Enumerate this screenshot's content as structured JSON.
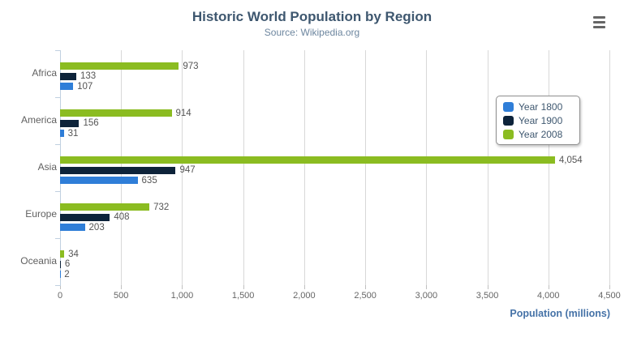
{
  "icons": {
    "context_menu": "hamburger"
  },
  "chart_data": {
    "type": "bar",
    "orientation": "horizontal",
    "title": "Historic World Population by Region",
    "subtitle": "Source: Wikipedia.org",
    "categories": [
      "Africa",
      "America",
      "Asia",
      "Europe",
      "Oceania"
    ],
    "series": [
      {
        "name": "Year 1800",
        "color": "#2f7ed8",
        "values": [
          107,
          31,
          635,
          203,
          2
        ]
      },
      {
        "name": "Year 1900",
        "color": "#0d233a",
        "values": [
          133,
          156,
          947,
          408,
          6
        ]
      },
      {
        "name": "Year 2008",
        "color": "#8bbc21",
        "values": [
          973,
          914,
          4054,
          732,
          34
        ]
      }
    ],
    "bar_display_order_top_to_bottom": [
      "Year 2008",
      "Year 1900",
      "Year 1800"
    ],
    "data_labels": true,
    "data_label_examples": [
      "973",
      "133",
      "107",
      "914",
      "156",
      "31",
      "4,054",
      "947",
      "635",
      "732",
      "408",
      "203",
      "34",
      "6",
      "2"
    ],
    "xlabel": "Population (millions)",
    "x_ticks": [
      0,
      500,
      1000,
      1500,
      2000,
      2500,
      3000,
      3500,
      4000,
      4500
    ],
    "x_tick_labels": [
      "0",
      "500",
      "1,000",
      "1,500",
      "2,000",
      "2,500",
      "3,000",
      "3,500",
      "4,000",
      "4,500"
    ],
    "xlim": [
      0,
      4500
    ],
    "grid": true,
    "legend_position": "right-inside",
    "colors": {
      "title": "#3E576F",
      "subtitle": "#6D869F",
      "axis_title": "#4572A7",
      "tick_label": "#666666",
      "gridline": "#D8D8D8",
      "axis_line": "#C0D0E0"
    }
  }
}
